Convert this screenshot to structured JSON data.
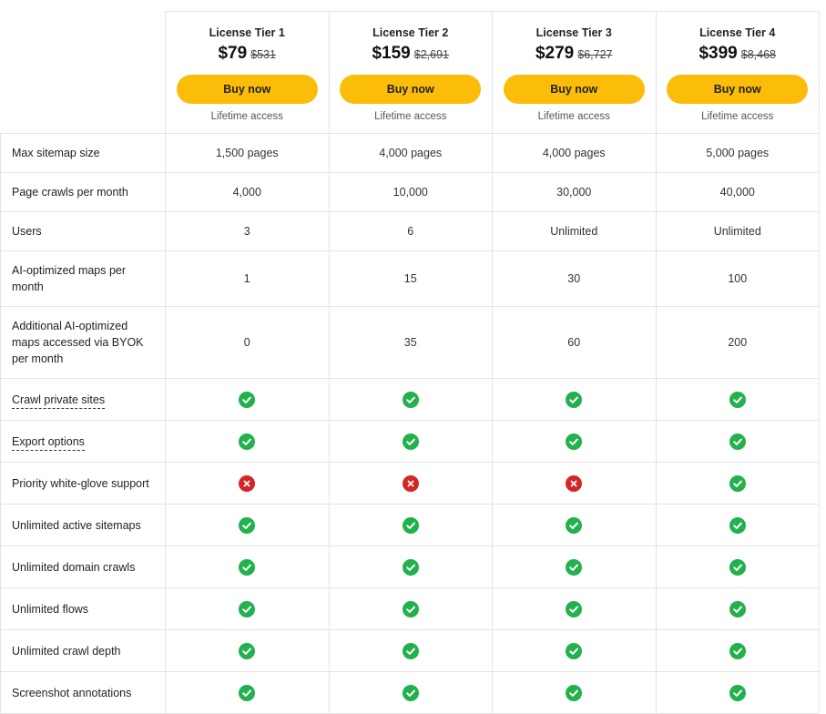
{
  "tiers": [
    {
      "name": "License Tier 1",
      "price": "$79",
      "old_price": "$531",
      "button": "Buy now",
      "access": "Lifetime access"
    },
    {
      "name": "License Tier 2",
      "price": "$159",
      "old_price": "$2,691",
      "button": "Buy now",
      "access": "Lifetime access"
    },
    {
      "name": "License Tier 3",
      "price": "$279",
      "old_price": "$6,727",
      "button": "Buy now",
      "access": "Lifetime access"
    },
    {
      "name": "License Tier 4",
      "price": "$399",
      "old_price": "$8,468",
      "button": "Buy now",
      "access": "Lifetime access"
    }
  ],
  "colors": {
    "button": "#fcbd0a",
    "check": "#22b14c",
    "cross": "#d32626",
    "border": "#e4e4e4"
  },
  "rows": [
    {
      "feature": "Max sitemap size",
      "values": [
        "1,500 pages",
        "4,000 pages",
        "4,000 pages",
        "5,000 pages"
      ]
    },
    {
      "feature": "Page crawls per month",
      "values": [
        "4,000",
        "10,000",
        "30,000",
        "40,000"
      ]
    },
    {
      "feature": "Users",
      "values": [
        "3",
        "6",
        "Unlimited",
        "Unlimited"
      ]
    },
    {
      "feature": "AI-optimized maps per month",
      "values": [
        "1",
        "15",
        "30",
        "100"
      ]
    },
    {
      "feature": "Additional AI-optimized maps accessed via BYOK per month",
      "values": [
        "0",
        "35",
        "60",
        "200"
      ]
    },
    {
      "feature": "Crawl private sites",
      "icons": [
        "check-icon",
        "check-icon",
        "check-icon",
        "check-icon"
      ]
    },
    {
      "feature": "Export options",
      "icons": [
        "check-icon",
        "check-icon",
        "check-icon",
        "check-icon"
      ]
    },
    {
      "feature": "Priority white-glove support",
      "icons": [
        "cross-icon",
        "cross-icon",
        "cross-icon",
        "check-icon"
      ]
    },
    {
      "feature": "Unlimited active sitemaps",
      "icons": [
        "check-icon",
        "check-icon",
        "check-icon",
        "check-icon"
      ]
    },
    {
      "feature": "Unlimited domain crawls",
      "icons": [
        "check-icon",
        "check-icon",
        "check-icon",
        "check-icon"
      ]
    },
    {
      "feature": "Unlimited flows",
      "icons": [
        "check-icon",
        "check-icon",
        "check-icon",
        "check-icon"
      ]
    },
    {
      "feature": "Unlimited crawl depth",
      "icons": [
        "check-icon",
        "check-icon",
        "check-icon",
        "check-icon"
      ]
    },
    {
      "feature": "Screenshot annotations",
      "icons": [
        "check-icon",
        "check-icon",
        "check-icon",
        "check-icon"
      ]
    }
  ]
}
